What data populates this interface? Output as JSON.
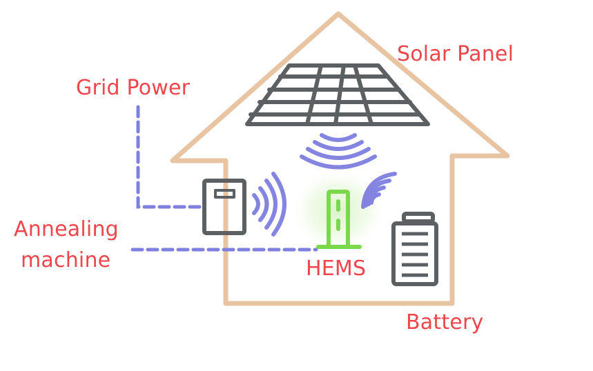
{
  "labels": {
    "solar_panel": "Solar Panel",
    "grid_power": "Grid Power",
    "annealing_line1": "Annealing",
    "annealing_line2": "machine",
    "hems": "HEMS",
    "battery": "Battery"
  },
  "colors": {
    "label_text": "#f0454b",
    "house_outline": "#e8c4a2",
    "device_outline": "#5d6063",
    "dashed_connection": "#7f7fe0",
    "wireless_signal": "#6f6fdc",
    "hems_device": "#7ad84a",
    "hems_glow": "#d9f3c8"
  },
  "icons": {
    "house": "house-outline-icon",
    "solar_panel": "solar-panel-icon",
    "power_meter": "power-meter-icon",
    "hems": "hems-device-icon",
    "battery": "battery-icon",
    "signal": "wireless-signal-icon"
  }
}
